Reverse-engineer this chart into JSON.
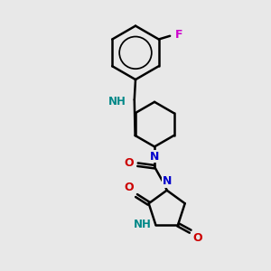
{
  "background_color": "#e8e8e8",
  "bond_color": "#000000",
  "N_color": "#0000cc",
  "O_color": "#cc0000",
  "F_color": "#cc00cc",
  "NH_color": "#008888",
  "line_width": 1.8,
  "xlim": [
    1.5,
    8.5
  ],
  "ylim": [
    1.5,
    13.5
  ]
}
